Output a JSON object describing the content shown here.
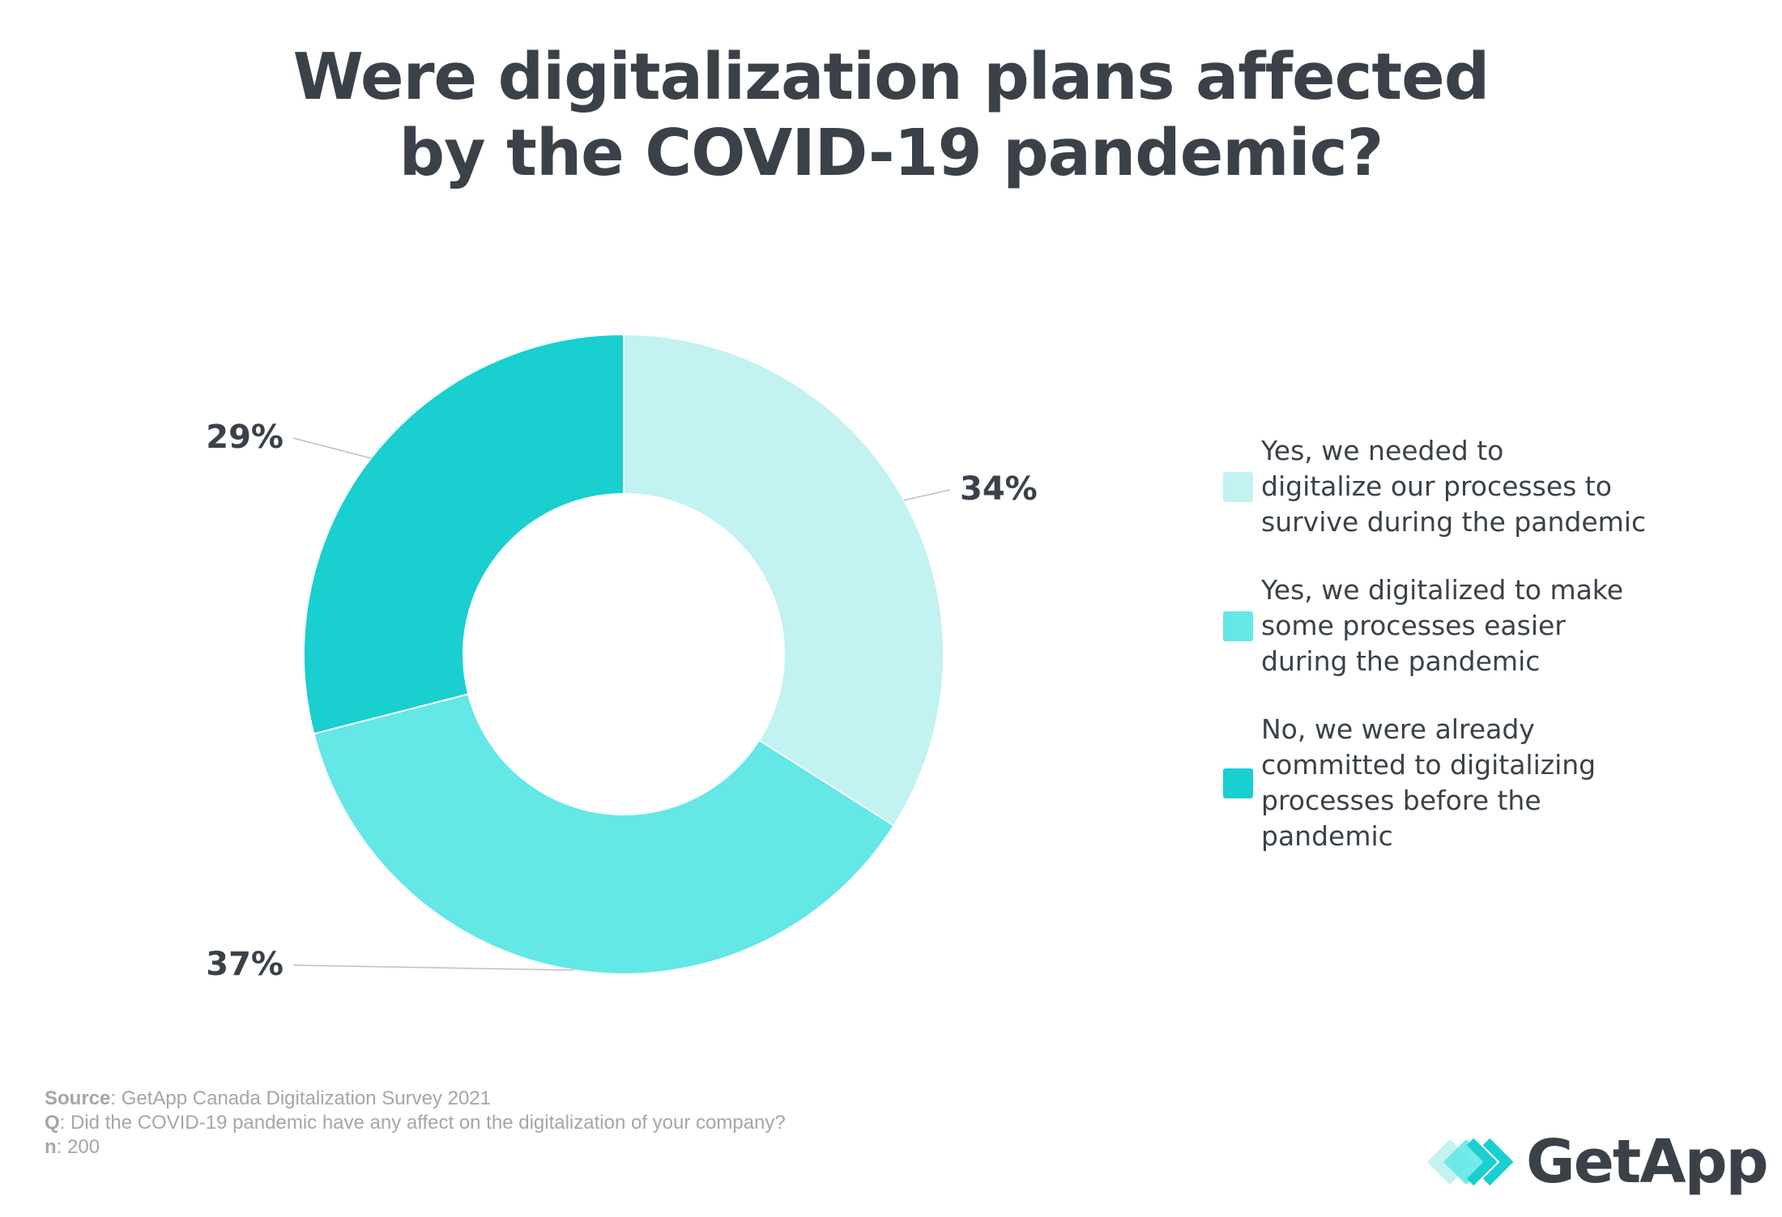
{
  "title": {
    "line1": "Were digitalization plans affected",
    "line2": "by the COVID-19 pandemic?"
  },
  "chart_data": {
    "type": "pie",
    "donut": true,
    "categories": [
      "Yes, we needed to digitalize our processes to survive during the pandemic",
      "Yes, we digitalized to make some processes easier during the pandemic",
      "No, we were already committed to digitalizing processes before the pandemic"
    ],
    "values": [
      34,
      37,
      29
    ],
    "value_labels": [
      "34%",
      "37%",
      "29%"
    ],
    "colors": [
      "#c2f2f1",
      "#64e7e7",
      "#19cfd0"
    ],
    "legend_placement": "right"
  },
  "legend": {
    "items": [
      {
        "lines": [
          "Yes, we needed to",
          "digitalize our processes to",
          "survive during the pandemic"
        ],
        "color": "#c2f2f1"
      },
      {
        "lines": [
          "Yes, we digitalized to make",
          "some processes easier",
          "during the pandemic"
        ],
        "color": "#64e7e7"
      },
      {
        "lines": [
          "No, we were already",
          "committed to digitalizing",
          "processes before the",
          "pandemic"
        ],
        "color": "#19cfd0"
      }
    ]
  },
  "footer": {
    "source_label": "Source",
    "source_text": ": GetApp Canada Digitalization Survey 2021",
    "q_label": "Q",
    "q_text": ": Did the COVID-19 pandemic have any affect on the digitalization of your company?",
    "n_label": "n",
    "n_text": ": 200"
  },
  "logo": {
    "text": "GetApp",
    "icon": "getapp-chevrons-icon"
  }
}
